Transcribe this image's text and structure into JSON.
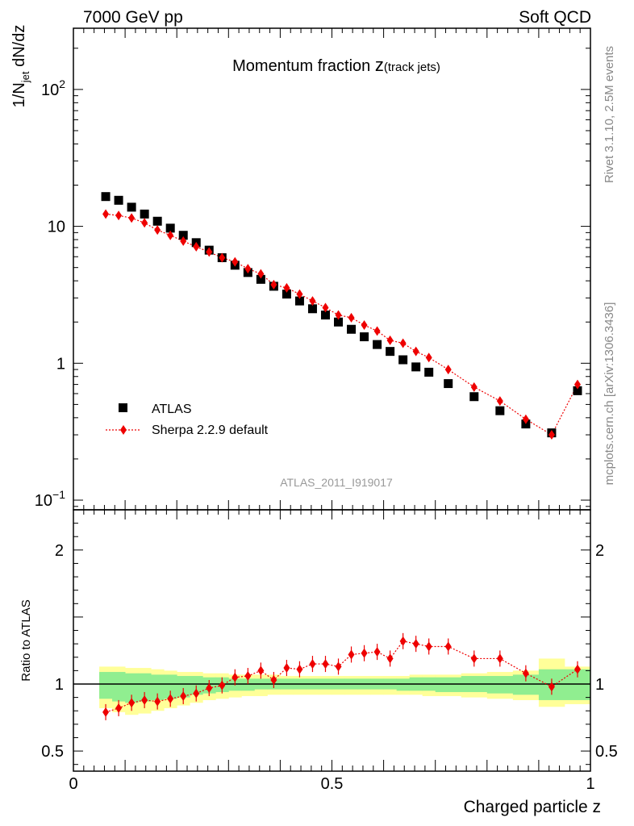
{
  "header": {
    "left": "7000 GeV pp",
    "right": "Soft QCD"
  },
  "side_labels": {
    "rivet": "Rivet 3.1.10,  2.5M events",
    "mcplots": "mcplots.cern.ch [arXiv:1306.3436]"
  },
  "chart_data": [
    {
      "type": "scatter",
      "panel": "main",
      "title_main": "Momentum fraction ",
      "title_z": "z",
      "title_sub": "(track jets)",
      "ylabel_pre": "1/N",
      "ylabel_sub": "jet",
      "ylabel_post": " dN/dz",
      "xlabel": "Charged particle z",
      "yscale": "log",
      "xlim": [
        0,
        1.0
      ],
      "ylim": [
        0.085,
        280
      ],
      "yticks": [
        {
          "value": 0.1,
          "base": "10",
          "exp": "−1"
        },
        {
          "value": 1,
          "label": "1"
        },
        {
          "value": 10,
          "label": "10"
        },
        {
          "value": 100,
          "base": "10",
          "exp": "2"
        }
      ],
      "watermark": "ATLAS_2011_I919017",
      "legend": {
        "position": "middle-left",
        "atlas": "ATLAS",
        "sherpa": "Sherpa 2.2.9 default"
      },
      "x": [
        0.0625,
        0.0875,
        0.1125,
        0.1375,
        0.1625,
        0.1875,
        0.2125,
        0.2375,
        0.2625,
        0.2875,
        0.3125,
        0.3375,
        0.3625,
        0.3875,
        0.4125,
        0.4375,
        0.4625,
        0.4875,
        0.5125,
        0.5375,
        0.5625,
        0.5875,
        0.6125,
        0.6375,
        0.6625,
        0.6875,
        0.725,
        0.775,
        0.825,
        0.875,
        0.925,
        0.975
      ],
      "series": [
        {
          "name": "ATLAS",
          "color": "#000000",
          "marker": "square",
          "values": [
            16.5,
            15.5,
            13.8,
            12.3,
            10.9,
            9.7,
            8.6,
            7.6,
            6.7,
            5.9,
            5.2,
            4.6,
            4.1,
            3.65,
            3.2,
            2.85,
            2.5,
            2.25,
            2.0,
            1.77,
            1.56,
            1.37,
            1.22,
            1.06,
            0.94,
            0.86,
            0.71,
            0.57,
            0.45,
            0.36,
            0.31,
            0.63
          ]
        },
        {
          "name": "Sherpa 2.2.9 default",
          "color": "#ee0000",
          "marker": "diamond",
          "line": "dotted",
          "values": [
            12.3,
            12.0,
            11.5,
            10.6,
            9.4,
            8.6,
            7.8,
            7.1,
            6.5,
            5.9,
            5.5,
            4.9,
            4.5,
            3.75,
            3.55,
            3.2,
            2.85,
            2.55,
            2.25,
            2.15,
            1.9,
            1.72,
            1.47,
            1.4,
            1.22,
            1.1,
            0.9,
            0.67,
            0.53,
            0.39,
            0.3,
            0.7
          ]
        }
      ]
    },
    {
      "type": "scatter",
      "panel": "ratio",
      "ylabel": "Ratio to ATLAS",
      "xlabel": "Charged particle z",
      "xlim": [
        0,
        1.0
      ],
      "ylim": [
        0.35,
        2.3
      ],
      "xticks": [
        {
          "value": 0,
          "label": "0"
        },
        {
          "value": 0.5,
          "label": "0.5"
        },
        {
          "value": 1,
          "label": "1"
        }
      ],
      "yticks": [
        {
          "value": 0.5,
          "label": "0.5"
        },
        {
          "value": 1,
          "label": "1"
        },
        {
          "value": 2,
          "label": "2"
        }
      ],
      "band_edges": [
        0.05,
        0.075,
        0.1,
        0.125,
        0.15,
        0.175,
        0.2,
        0.225,
        0.25,
        0.275,
        0.3,
        0.325,
        0.35,
        0.375,
        0.4,
        0.425,
        0.45,
        0.475,
        0.5,
        0.525,
        0.55,
        0.575,
        0.6,
        0.625,
        0.65,
        0.675,
        0.7,
        0.75,
        0.8,
        0.85,
        0.9,
        0.95,
        1.0
      ],
      "band_stat": {
        "color": "#90ee90",
        "low": [
          0.89,
          0.87,
          0.86,
          0.87,
          0.88,
          0.89,
          0.9,
          0.92,
          0.93,
          0.94,
          0.95,
          0.95,
          0.96,
          0.96,
          0.96,
          0.96,
          0.96,
          0.96,
          0.96,
          0.96,
          0.96,
          0.96,
          0.96,
          0.95,
          0.95,
          0.95,
          0.94,
          0.94,
          0.93,
          0.92,
          0.88,
          0.88
        ],
        "high": [
          1.09,
          1.09,
          1.08,
          1.08,
          1.07,
          1.07,
          1.06,
          1.06,
          1.05,
          1.05,
          1.04,
          1.04,
          1.04,
          1.04,
          1.04,
          1.04,
          1.04,
          1.04,
          1.04,
          1.04,
          1.04,
          1.04,
          1.04,
          1.04,
          1.05,
          1.05,
          1.05,
          1.06,
          1.06,
          1.07,
          1.11,
          1.11
        ]
      },
      "band_total": {
        "color": "#ffff99",
        "low": [
          0.82,
          0.79,
          0.77,
          0.78,
          0.8,
          0.82,
          0.84,
          0.86,
          0.88,
          0.89,
          0.9,
          0.91,
          0.91,
          0.92,
          0.92,
          0.92,
          0.92,
          0.92,
          0.92,
          0.92,
          0.92,
          0.92,
          0.92,
          0.92,
          0.92,
          0.91,
          0.91,
          0.9,
          0.89,
          0.88,
          0.83,
          0.85
        ],
        "high": [
          1.13,
          1.13,
          1.12,
          1.12,
          1.11,
          1.1,
          1.09,
          1.09,
          1.08,
          1.08,
          1.07,
          1.07,
          1.07,
          1.07,
          1.06,
          1.06,
          1.06,
          1.06,
          1.06,
          1.06,
          1.06,
          1.06,
          1.06,
          1.06,
          1.07,
          1.07,
          1.07,
          1.08,
          1.09,
          1.1,
          1.19,
          1.13
        ]
      },
      "x": [
        0.0625,
        0.0875,
        0.1125,
        0.1375,
        0.1625,
        0.1875,
        0.2125,
        0.2375,
        0.2625,
        0.2875,
        0.3125,
        0.3375,
        0.3625,
        0.3875,
        0.4125,
        0.4375,
        0.4625,
        0.4875,
        0.5125,
        0.5375,
        0.5625,
        0.5875,
        0.6125,
        0.6375,
        0.6625,
        0.6875,
        0.725,
        0.775,
        0.825,
        0.875,
        0.925,
        0.975
      ],
      "series": [
        {
          "name": "Sherpa 2.2.9 default",
          "color": "#ee0000",
          "marker": "diamond",
          "line": "dotted",
          "values": [
            0.79,
            0.82,
            0.86,
            0.88,
            0.87,
            0.89,
            0.91,
            0.93,
            0.97,
            0.99,
            1.05,
            1.06,
            1.1,
            1.03,
            1.12,
            1.11,
            1.15,
            1.15,
            1.13,
            1.22,
            1.23,
            1.24,
            1.19,
            1.32,
            1.3,
            1.28,
            1.28,
            1.19,
            1.19,
            1.08,
            0.98,
            1.11
          ]
        }
      ]
    }
  ]
}
